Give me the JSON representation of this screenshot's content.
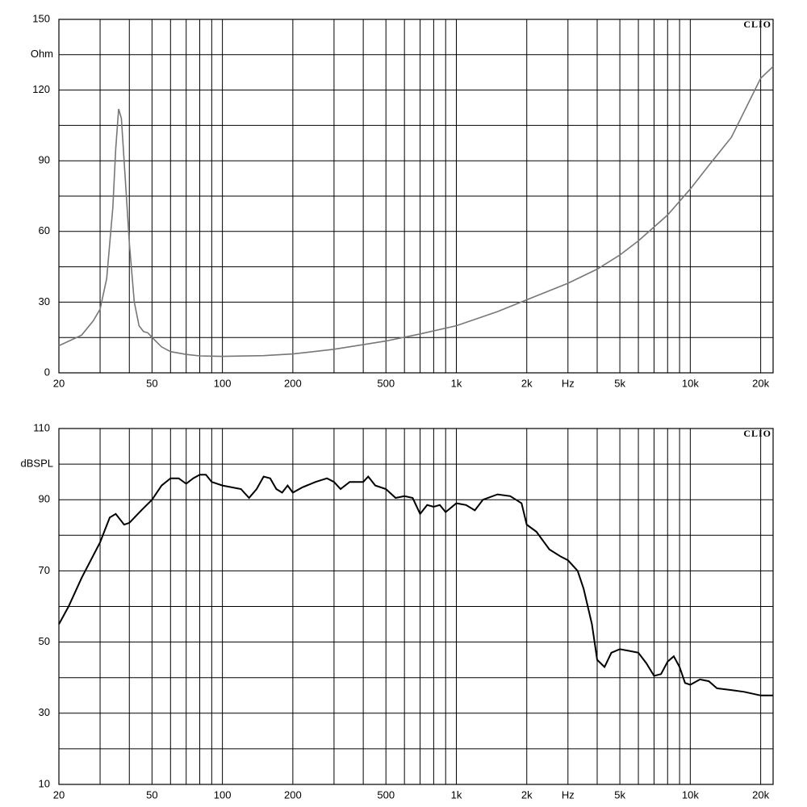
{
  "chart_data": [
    {
      "type": "line",
      "ylabel": "Ohm",
      "watermark": "CLIO",
      "xscale": "log",
      "grid": true,
      "xlim": [
        20,
        22600
      ],
      "ylim": [
        0,
        150
      ],
      "xticks": [
        20,
        50,
        100,
        200,
        500,
        {
          "value": 1000,
          "label": "1k"
        },
        {
          "value": 2000,
          "label": "2k"
        },
        {
          "value": 3000,
          "label": "Hz"
        },
        {
          "value": 5000,
          "label": "5k"
        },
        {
          "value": 10000,
          "label": "10k"
        },
        {
          "value": 20000,
          "label": "20k"
        }
      ],
      "xgrid": [
        30,
        40,
        60,
        70,
        80,
        90,
        300,
        400,
        600,
        700,
        800,
        900,
        4000,
        6000,
        7000,
        8000,
        9000
      ],
      "yticks": [
        0,
        30,
        60,
        90,
        120,
        150
      ],
      "ygrid": [
        15,
        45,
        75,
        105,
        135
      ],
      "series": [
        {
          "color": "#777777",
          "x": [
            20,
            25,
            28,
            30,
            32,
            34,
            35,
            36,
            37,
            38,
            40,
            42,
            44,
            46,
            48,
            50,
            55,
            60,
            70,
            80,
            100,
            150,
            200,
            300,
            500,
            700,
            1000,
            1500,
            2000,
            3000,
            4000,
            5000,
            6000,
            8000,
            10000,
            12000,
            15000,
            20000,
            22600
          ],
          "values": [
            11.5,
            16,
            22,
            27,
            40,
            70,
            95,
            112,
            108,
            90,
            55,
            30,
            20,
            17.5,
            17,
            15,
            11,
            9,
            7.8,
            7.2,
            7,
            7.3,
            8,
            10,
            13.5,
            16.5,
            20,
            26,
            31,
            38,
            44,
            50,
            56,
            67,
            78,
            88,
            100,
            125,
            130
          ]
        }
      ]
    },
    {
      "type": "line",
      "ylabel": "dBSPL",
      "watermark": "CLIO",
      "xscale": "log",
      "grid": true,
      "xlim": [
        20,
        22600
      ],
      "ylim": [
        10,
        110
      ],
      "xticks": [
        20,
        50,
        100,
        200,
        500,
        {
          "value": 1000,
          "label": "1k"
        },
        {
          "value": 2000,
          "label": "2k"
        },
        {
          "value": 3000,
          "label": "Hz"
        },
        {
          "value": 5000,
          "label": "5k"
        },
        {
          "value": 10000,
          "label": "10k"
        },
        {
          "value": 20000,
          "label": "20k"
        }
      ],
      "xgrid": [
        30,
        40,
        60,
        70,
        80,
        90,
        300,
        400,
        600,
        700,
        800,
        900,
        4000,
        6000,
        7000,
        8000,
        9000
      ],
      "yticks": [
        10,
        30,
        50,
        70,
        90,
        110
      ],
      "ygrid": [
        20,
        40,
        60,
        80,
        100
      ],
      "series": [
        {
          "color": "#000000",
          "x": [
            20,
            22,
            25,
            30,
            33,
            35,
            38,
            40,
            45,
            50,
            55,
            60,
            65,
            70,
            75,
            80,
            85,
            90,
            100,
            120,
            130,
            140,
            150,
            160,
            170,
            180,
            190,
            200,
            220,
            250,
            280,
            300,
            320,
            350,
            400,
            420,
            450,
            500,
            550,
            600,
            650,
            700,
            750,
            800,
            850,
            900,
            1000,
            1100,
            1200,
            1300,
            1500,
            1700,
            1900,
            2000,
            2200,
            2500,
            2800,
            3000,
            3300,
            3500,
            3800,
            4000,
            4300,
            4600,
            5000,
            5500,
            6000,
            6500,
            7000,
            7500,
            8000,
            8500,
            9000,
            9500,
            10000,
            11000,
            12000,
            13000,
            15000,
            17000,
            20000,
            22600
          ],
          "values": [
            55,
            60,
            68,
            78,
            85,
            86,
            83,
            83.5,
            87,
            90,
            94,
            96,
            96,
            94.5,
            96,
            97,
            97,
            95,
            94,
            93,
            90.5,
            93,
            96.5,
            96,
            93,
            92,
            94,
            92,
            93.5,
            95,
            96,
            95,
            93,
            95,
            95,
            96.5,
            94,
            93,
            90.5,
            91,
            90.5,
            86,
            88.5,
            88,
            88.5,
            86.5,
            89,
            88.5,
            87,
            90,
            91.5,
            91,
            89,
            83,
            81,
            76,
            74,
            73,
            70,
            65,
            55,
            45,
            43,
            47,
            48,
            47.5,
            47,
            44,
            40.5,
            41,
            44.5,
            46,
            43,
            38.5,
            38,
            39.5,
            39,
            37,
            36.5,
            36,
            35,
            35
          ]
        }
      ]
    }
  ]
}
